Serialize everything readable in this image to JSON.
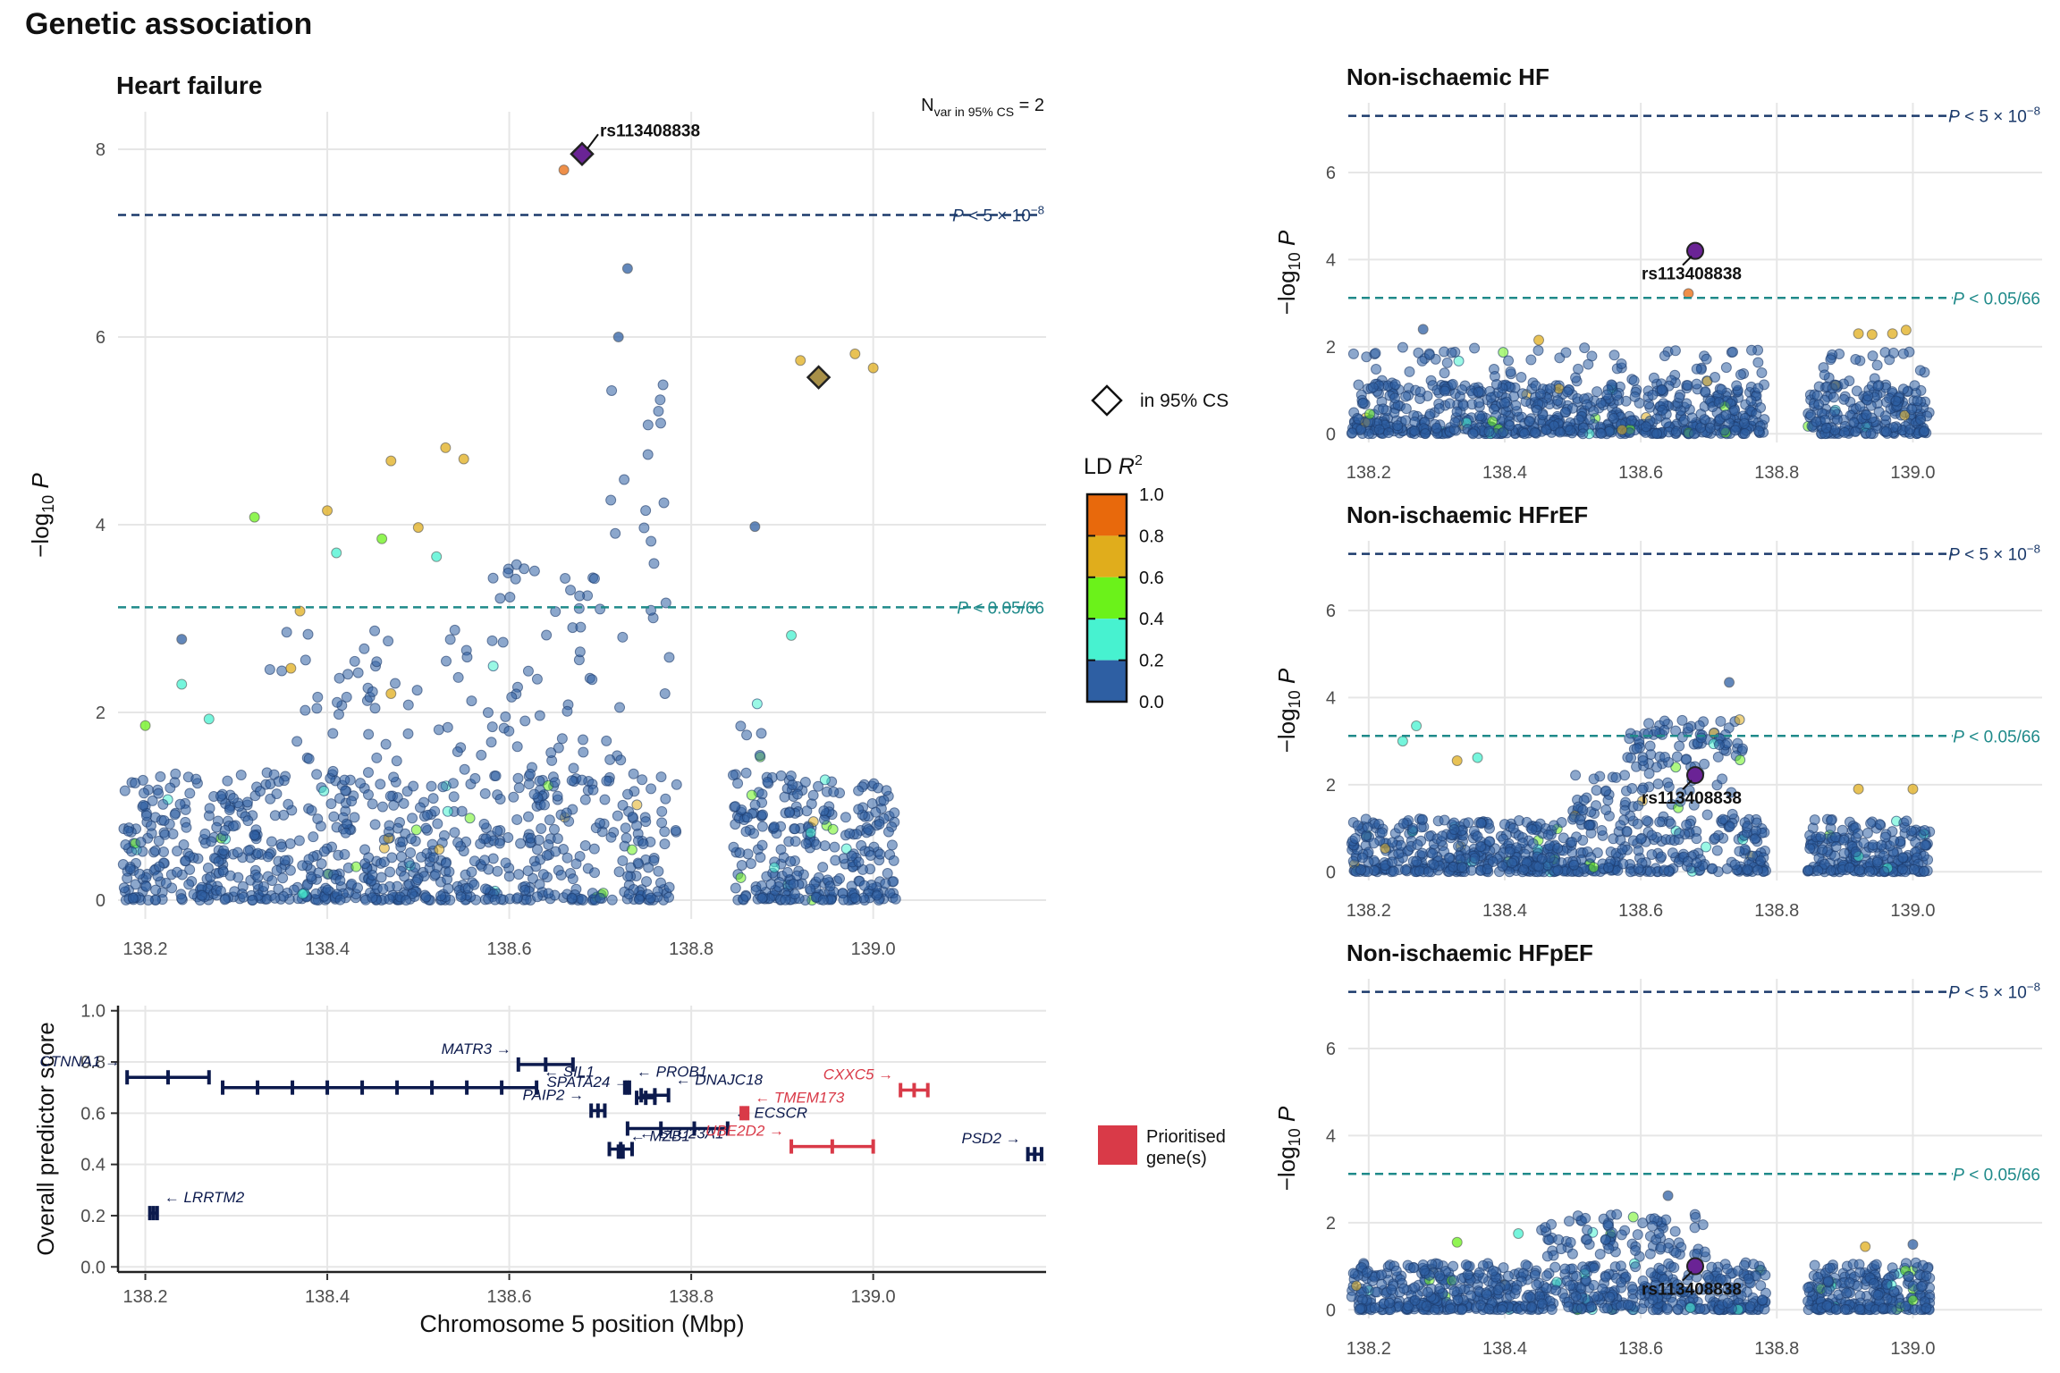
{
  "title": "Genetic association",
  "colors": {
    "ld_0_0.2": "#2e5fa3",
    "ld_0.2_0.4": "#47f2d0",
    "ld_0.4_0.6": "#6bf21a",
    "ld_0.6_0.8": "#e0ad1c",
    "ld_0.8_1.0": "#e8690c",
    "lead_variant": "#6a2395",
    "gwsig_line": "#1b3a6b",
    "bonf_line": "#1f8a8a",
    "prioritised_gene": "#d93a48",
    "other_gene": "#0c1a4d",
    "grid": "#e6e6e6"
  },
  "chart_data": [
    {
      "id": "heart_failure",
      "type": "scatter",
      "title": "Heart failure",
      "annotation": {
        "prefix": "N",
        "subscript": "var in 95% CS",
        "suffix": " = 2"
      },
      "xlabel": "",
      "ylabel": "−log₁₀ P",
      "xlim": [
        138.17,
        139.19
      ],
      "ylim": [
        -0.2,
        8.4
      ],
      "xticks": [
        "138.2",
        "138.4",
        "138.6",
        "138.8",
        "139.0"
      ],
      "yticks": [
        "0",
        "2",
        "4",
        "6",
        "8"
      ],
      "thresholds": [
        {
          "label": "P < 5 × 10⁻⁸",
          "value": 7.3
        },
        {
          "label": "P < 0.05/66",
          "value": 3.12
        }
      ],
      "lead_snp": {
        "label": "rs113408838",
        "x": 138.68,
        "y": 7.95
      },
      "credible_set": [
        {
          "x": 138.68,
          "y": 7.95,
          "ld": 1.0
        },
        {
          "x": 138.94,
          "y": 5.57,
          "ld": 0.7
        }
      ],
      "highlight_points": [
        {
          "x": 138.66,
          "y": 7.78,
          "ld": 0.85
        },
        {
          "x": 138.73,
          "y": 6.73,
          "ld": 0.1
        },
        {
          "x": 138.72,
          "y": 6.0,
          "ld": 0.1
        },
        {
          "x": 138.92,
          "y": 5.75,
          "ld": 0.7
        },
        {
          "x": 138.98,
          "y": 5.82,
          "ld": 0.7
        },
        {
          "x": 139.0,
          "y": 5.67,
          "ld": 0.7
        },
        {
          "x": 138.47,
          "y": 4.68,
          "ld": 0.7
        },
        {
          "x": 138.53,
          "y": 4.82,
          "ld": 0.7
        },
        {
          "x": 138.55,
          "y": 4.7,
          "ld": 0.7
        },
        {
          "x": 138.32,
          "y": 4.08,
          "ld": 0.5
        },
        {
          "x": 138.4,
          "y": 4.15,
          "ld": 0.7
        },
        {
          "x": 138.46,
          "y": 3.85,
          "ld": 0.5
        },
        {
          "x": 138.5,
          "y": 3.97,
          "ld": 0.7
        },
        {
          "x": 138.87,
          "y": 3.98,
          "ld": 0.1
        },
        {
          "x": 138.41,
          "y": 3.7,
          "ld": 0.3
        },
        {
          "x": 138.52,
          "y": 3.66,
          "ld": 0.3
        },
        {
          "x": 138.37,
          "y": 3.08,
          "ld": 0.7
        },
        {
          "x": 138.36,
          "y": 2.47,
          "ld": 0.7
        },
        {
          "x": 138.47,
          "y": 2.2,
          "ld": 0.7
        },
        {
          "x": 138.91,
          "y": 2.82,
          "ld": 0.3
        },
        {
          "x": 138.2,
          "y": 1.86,
          "ld": 0.5
        },
        {
          "x": 138.24,
          "y": 2.78,
          "ld": 0.1
        },
        {
          "x": 138.24,
          "y": 2.3,
          "ld": 0.3
        },
        {
          "x": 138.27,
          "y": 1.93,
          "ld": 0.3
        }
      ]
    },
    {
      "id": "non_ischaemic_hf",
      "type": "scatter",
      "title": "Non-ischaemic HF",
      "ylabel": "−log₁₀ P",
      "xlim": [
        138.17,
        139.19
      ],
      "ylim": [
        -0.2,
        7.6
      ],
      "xticks": [
        "138.2",
        "138.4",
        "138.6",
        "138.8",
        "139.0"
      ],
      "yticks": [
        "0",
        "2",
        "4",
        "6"
      ],
      "thresholds": [
        {
          "label": "P < 5 × 10⁻⁸",
          "value": 7.3
        },
        {
          "label": "P < 0.05/66",
          "value": 3.12
        }
      ],
      "lead_snp": {
        "label": "rs113408838",
        "x": 138.68,
        "y": 4.2
      },
      "highlight_points": [
        {
          "x": 138.67,
          "y": 3.22,
          "ld": 0.85
        },
        {
          "x": 138.28,
          "y": 2.4,
          "ld": 0.1
        },
        {
          "x": 138.92,
          "y": 2.3,
          "ld": 0.7
        },
        {
          "x": 138.94,
          "y": 2.28,
          "ld": 0.7
        },
        {
          "x": 138.97,
          "y": 2.3,
          "ld": 0.7
        },
        {
          "x": 138.99,
          "y": 2.38,
          "ld": 0.7
        },
        {
          "x": 138.45,
          "y": 2.15,
          "ld": 0.7
        }
      ]
    },
    {
      "id": "non_ischaemic_hfref",
      "type": "scatter",
      "title": "Non-ischaemic HFrEF",
      "ylabel": "−log₁₀ P",
      "xlim": [
        138.17,
        139.19
      ],
      "ylim": [
        -0.2,
        7.6
      ],
      "xticks": [
        "138.2",
        "138.4",
        "138.6",
        "138.8",
        "139.0"
      ],
      "yticks": [
        "0",
        "2",
        "4",
        "6"
      ],
      "thresholds": [
        {
          "label": "P < 5 × 10⁻⁸",
          "value": 7.3
        },
        {
          "label": "P < 0.05/66",
          "value": 3.12
        }
      ],
      "lead_snp": {
        "label": "rs113408838",
        "x": 138.68,
        "y": 2.22
      },
      "highlight_points": [
        {
          "x": 138.73,
          "y": 4.35,
          "ld": 0.1
        },
        {
          "x": 138.27,
          "y": 3.35,
          "ld": 0.3
        },
        {
          "x": 138.25,
          "y": 3.0,
          "ld": 0.3
        },
        {
          "x": 138.33,
          "y": 2.55,
          "ld": 0.7
        },
        {
          "x": 138.36,
          "y": 2.62,
          "ld": 0.3
        },
        {
          "x": 138.92,
          "y": 1.9,
          "ld": 0.7
        },
        {
          "x": 139.0,
          "y": 1.9,
          "ld": 0.7
        }
      ]
    },
    {
      "id": "non_ischaemic_hfpef",
      "type": "scatter",
      "title": "Non-ischaemic HFpEF",
      "ylabel": "−log₁₀ P",
      "xlim": [
        138.17,
        139.19
      ],
      "ylim": [
        -0.2,
        7.6
      ],
      "xticks": [
        "138.2",
        "138.4",
        "138.6",
        "138.8",
        "139.0"
      ],
      "yticks": [
        "0",
        "2",
        "4",
        "6"
      ],
      "thresholds": [
        {
          "label": "P < 5 × 10⁻⁸",
          "value": 7.3
        },
        {
          "label": "P < 0.05/66",
          "value": 3.12
        }
      ],
      "lead_snp": {
        "label": "rs113408838",
        "x": 138.68,
        "y": 1.0
      },
      "highlight_points": [
        {
          "x": 138.64,
          "y": 2.62,
          "ld": 0.1
        },
        {
          "x": 138.33,
          "y": 1.55,
          "ld": 0.5
        },
        {
          "x": 138.42,
          "y": 1.75,
          "ld": 0.3
        },
        {
          "x": 138.93,
          "y": 1.45,
          "ld": 0.7
        },
        {
          "x": 139.0,
          "y": 1.5,
          "ld": 0.1
        }
      ]
    },
    {
      "id": "gene_track",
      "type": "gene_track",
      "xlabel": "Chromosome 5 position (Mbp)",
      "ylabel": "Overall predictor score",
      "xlim": [
        138.17,
        139.19
      ],
      "ylim": [
        -0.02,
        1.02
      ],
      "xticks": [
        "138.2",
        "138.4",
        "138.6",
        "138.8",
        "139.0"
      ],
      "yticks": [
        "0.0",
        "0.2",
        "0.4",
        "0.6",
        "0.8",
        "1.0"
      ],
      "genes": [
        {
          "name": "CTNNA1",
          "start": 138.18,
          "end": 138.27,
          "score": 0.74,
          "strand": "+",
          "prioritised": false
        },
        {
          "name": "SIL1",
          "start": 138.285,
          "end": 138.63,
          "score": 0.7,
          "strand": "-",
          "prioritised": false
        },
        {
          "name": "MATR3",
          "start": 138.61,
          "end": 138.67,
          "score": 0.79,
          "strand": "+",
          "prioritised": false
        },
        {
          "name": "PROB1",
          "start": 138.727,
          "end": 138.732,
          "score": 0.7,
          "strand": "-",
          "prioritised": false
        },
        {
          "name": "DNAJC18",
          "start": 138.745,
          "end": 138.775,
          "score": 0.67,
          "strand": "-",
          "prioritised": false
        },
        {
          "name": "SPATA24",
          "start": 138.74,
          "end": 138.76,
          "score": 0.66,
          "strand": "+",
          "prioritised": false
        },
        {
          "name": "PAIP2",
          "start": 138.69,
          "end": 138.705,
          "score": 0.61,
          "strand": "+",
          "prioritised": false
        },
        {
          "name": "ECSCR",
          "start": 138.73,
          "end": 138.84,
          "score": 0.54,
          "strand": "-",
          "prioritised": false
        },
        {
          "name": "SLC23A1",
          "start": 138.71,
          "end": 138.735,
          "score": 0.46,
          "strand": "-",
          "prioritised": false
        },
        {
          "name": "MZB1",
          "start": 138.72,
          "end": 138.725,
          "score": 0.45,
          "strand": "-",
          "prioritised": false
        },
        {
          "name": "TMEM173",
          "start": 138.855,
          "end": 138.862,
          "score": 0.6,
          "strand": "-",
          "prioritised": true
        },
        {
          "name": "CXXC5",
          "start": 139.03,
          "end": 139.06,
          "score": 0.69,
          "strand": "+",
          "prioritised": true
        },
        {
          "name": "UBE2D2",
          "start": 138.91,
          "end": 139.0,
          "score": 0.47,
          "strand": "+",
          "prioritised": true
        },
        {
          "name": "PSD2",
          "start": 139.17,
          "end": 139.185,
          "score": 0.44,
          "strand": "+",
          "prioritised": false
        },
        {
          "name": "LRRTM2",
          "start": 138.205,
          "end": 138.213,
          "score": 0.21,
          "strand": "-",
          "prioritised": false
        }
      ]
    }
  ],
  "legend": {
    "cs_label": "in 95% CS",
    "ld_title": "LD R",
    "ld_superscript": "2",
    "ld_ticks": [
      "0.0",
      "0.2",
      "0.4",
      "0.6",
      "0.8",
      "1.0"
    ],
    "prioritised_label_line1": "Prioritised",
    "prioritised_label_line2": "gene(s)"
  }
}
